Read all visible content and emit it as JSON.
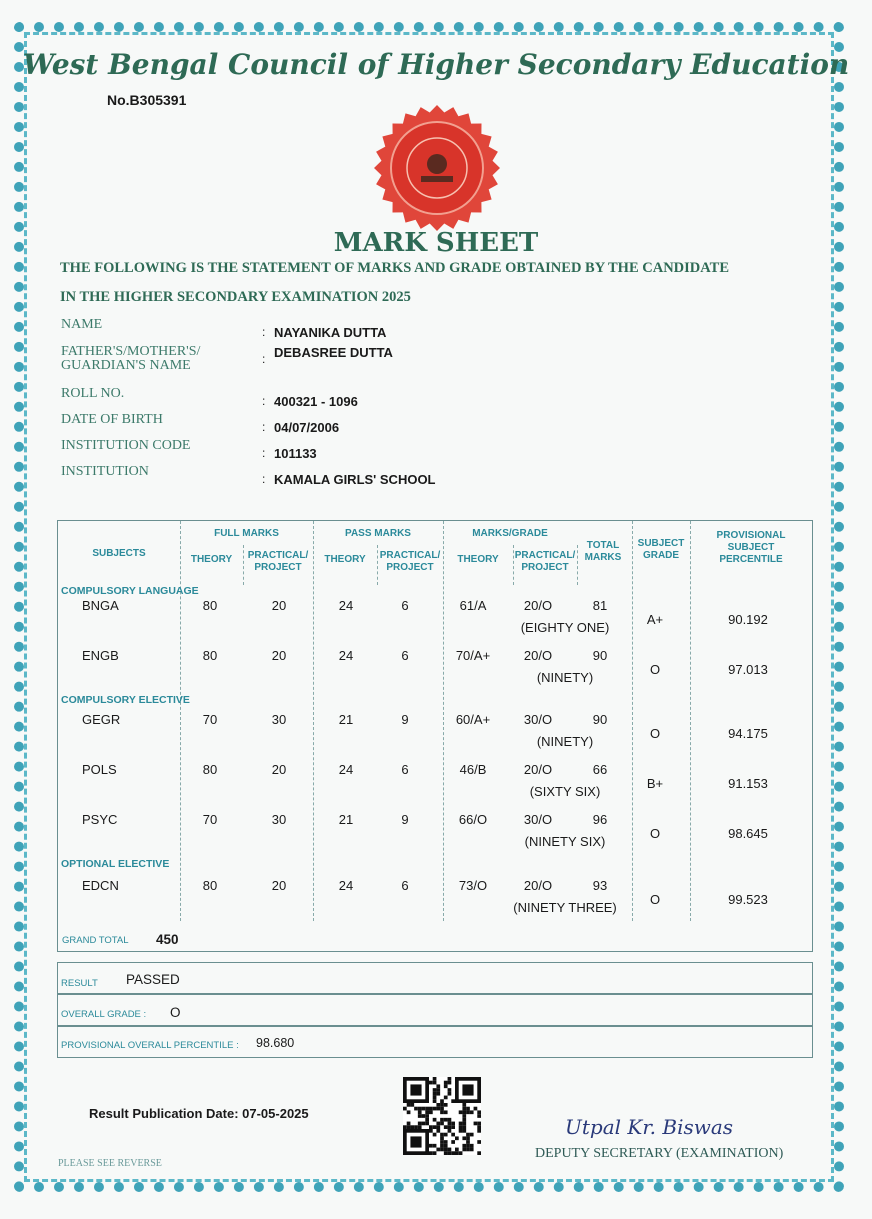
{
  "header": {
    "council": "West Bengal Council of Higher Secondary Education",
    "serial_no": "No.B305391",
    "title": "MARK SHEET",
    "statement_line1": "THE FOLLOWING IS THE STATEMENT OF MARKS AND GRADE OBTAINED BY THE CANDIDATE",
    "statement_line2": "IN THE HIGHER SECONDARY EXAMINATION 2025"
  },
  "candidate": [
    {
      "label": "NAME",
      "value": "NAYANIKA DUTTA"
    },
    {
      "label": "FATHER'S/MOTHER'S/ GUARDIAN'S NAME",
      "value": "DEBASREE DUTTA"
    },
    {
      "label": "ROLL NO.",
      "value": "400321 - 1096"
    },
    {
      "label": "DATE OF BIRTH",
      "value": "04/07/2006"
    },
    {
      "label": "INSTITUTION CODE",
      "value": "101133"
    },
    {
      "label": "INSTITUTION",
      "value": "KAMALA GIRLS' SCHOOL"
    }
  ],
  "table_headers": {
    "subjects": "SUBJECTS",
    "full_marks": "FULL MARKS",
    "pass_marks": "PASS MARKS",
    "marks_grade": "MARKS/GRADE",
    "theory": "THEORY",
    "practical": "PRACTICAL/ PROJECT",
    "total": "TOTAL MARKS",
    "grade": "SUBJECT GRADE",
    "percentile": "PROVISIONAL SUBJECT PERCENTILE"
  },
  "categories": [
    "COMPULSORY LANGUAGE",
    "COMPULSORY ELECTIVE",
    "OPTIONAL ELECTIVE"
  ],
  "subjects": [
    {
      "name": "BNGA",
      "fm_theory": "80",
      "fm_prac": "20",
      "pm_theory": "24",
      "pm_prac": "6",
      "theory": "61/A",
      "prac": "20/O",
      "total": "81",
      "words": "(EIGHTY ONE)",
      "grade": "A+",
      "percentile": "90.192"
    },
    {
      "name": "ENGB",
      "fm_theory": "80",
      "fm_prac": "20",
      "pm_theory": "24",
      "pm_prac": "6",
      "theory": "70/A+",
      "prac": "20/O",
      "total": "90",
      "words": "(NINETY)",
      "grade": "O",
      "percentile": "97.013"
    },
    {
      "name": "GEGR",
      "fm_theory": "70",
      "fm_prac": "30",
      "pm_theory": "21",
      "pm_prac": "9",
      "theory": "60/A+",
      "prac": "30/O",
      "total": "90",
      "words": "(NINETY)",
      "grade": "O",
      "percentile": "94.175"
    },
    {
      "name": "POLS",
      "fm_theory": "80",
      "fm_prac": "20",
      "pm_theory": "24",
      "pm_prac": "6",
      "theory": "46/B",
      "prac": "20/O",
      "total": "66",
      "words": "(SIXTY SIX)",
      "grade": "B+",
      "percentile": "91.153"
    },
    {
      "name": "PSYC",
      "fm_theory": "70",
      "fm_prac": "30",
      "pm_theory": "21",
      "pm_prac": "9",
      "theory": "66/O",
      "prac": "30/O",
      "total": "96",
      "words": "(NINETY SIX)",
      "grade": "O",
      "percentile": "98.645"
    },
    {
      "name": "EDCN",
      "fm_theory": "80",
      "fm_prac": "20",
      "pm_theory": "24",
      "pm_prac": "6",
      "theory": "73/O",
      "prac": "20/O",
      "total": "93",
      "words": "(NINETY THREE)",
      "grade": "O",
      "percentile": "99.523"
    }
  ],
  "summary": {
    "grand_total_label": "GRAND TOTAL",
    "grand_total": "450",
    "result_label": "RESULT",
    "result": "PASSED",
    "overall_grade_label": "OVERALL GRADE :",
    "overall_grade": "O",
    "percentile_label": "PROVISIONAL OVERALL PERCENTILE :",
    "percentile": "98.680"
  },
  "footer": {
    "publication_date": "Result Publication Date: 07-05-2025",
    "signature": "Utpal Kr. Biswas",
    "designation": "DEPUTY SECRETARY (EXAMINATION)",
    "see_reverse": "PLEASE SEE REVERSE"
  },
  "colors": {
    "border": "#3fa3b8",
    "heading": "#2e6a55",
    "seal": "#e0463a"
  }
}
